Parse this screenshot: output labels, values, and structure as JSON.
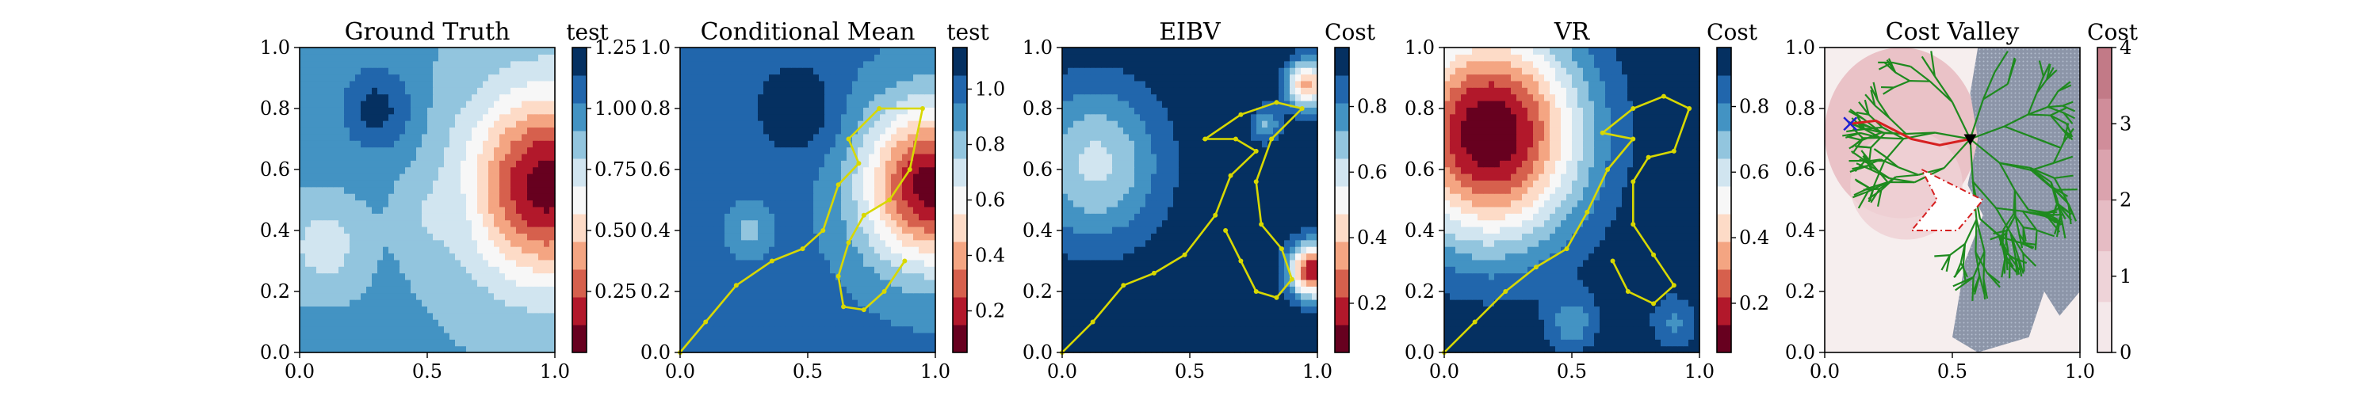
{
  "chart_data": [
    {
      "type": "heatmap",
      "title": "Ground Truth",
      "colorbar_label": "test",
      "colorbar_ticks": [
        "0.25",
        "0.50",
        "0.75",
        "1.00",
        "1.25"
      ],
      "colorbar_range": [
        0.0,
        1.25
      ],
      "colormap": [
        "#67001f",
        "#b2182b",
        "#d6604d",
        "#f4a582",
        "#fddbc7",
        "#f7f7f7",
        "#d1e5f0",
        "#92c5de",
        "#4393c3",
        "#2166ac",
        "#053061"
      ],
      "xlim": [
        0,
        1
      ],
      "ylim": [
        0,
        1
      ],
      "xticks": [
        "0.0",
        "0.5",
        "1.0"
      ],
      "yticks": [
        "0.0",
        "0.2",
        "0.4",
        "0.6",
        "0.8",
        "1.0"
      ],
      "blobs": [
        {
          "x": 0.97,
          "y": 0.55,
          "r": 0.3,
          "v": 0.05
        },
        {
          "x": 0.1,
          "y": 0.35,
          "r": 0.12,
          "v": 0.7
        },
        {
          "x": 0.3,
          "y": 0.8,
          "r": 0.14,
          "v": 1.18
        },
        {
          "x": 0.55,
          "y": 0.45,
          "r": 0.1,
          "v": 0.75
        }
      ],
      "base": 0.92
    },
    {
      "type": "heatmap",
      "title": "Conditional Mean",
      "colorbar_label": "test",
      "colorbar_ticks": [
        "0.2",
        "0.4",
        "0.6",
        "0.8",
        "1.0"
      ],
      "colorbar_range": [
        0.05,
        1.15
      ],
      "colormap": [
        "#67001f",
        "#b2182b",
        "#d6604d",
        "#f4a582",
        "#fddbc7",
        "#f7f7f7",
        "#d1e5f0",
        "#92c5de",
        "#4393c3",
        "#2166ac",
        "#053061"
      ],
      "xlim": [
        0,
        1
      ],
      "ylim": [
        0,
        1
      ],
      "xticks": [
        "0.0",
        "0.5",
        "1.0"
      ],
      "yticks": [
        "0.0",
        "0.2",
        "0.4",
        "0.6",
        "0.8",
        "1.0"
      ],
      "blobs": [
        {
          "x": 0.98,
          "y": 0.55,
          "r": 0.26,
          "v": 0.1
        },
        {
          "x": 0.45,
          "y": 0.8,
          "r": 0.15,
          "v": 1.15
        },
        {
          "x": 0.27,
          "y": 0.4,
          "r": 0.08,
          "v": 0.82
        }
      ],
      "base": 0.98,
      "path": [
        [
          0.0,
          0.0
        ],
        [
          0.1,
          0.1
        ],
        [
          0.22,
          0.22
        ],
        [
          0.36,
          0.3
        ],
        [
          0.48,
          0.34
        ],
        [
          0.56,
          0.4
        ],
        [
          0.62,
          0.55
        ],
        [
          0.7,
          0.62
        ],
        [
          0.66,
          0.7
        ],
        [
          0.78,
          0.8
        ],
        [
          0.95,
          0.8
        ],
        [
          0.9,
          0.6
        ],
        [
          0.82,
          0.5
        ],
        [
          0.72,
          0.45
        ],
        [
          0.66,
          0.36
        ],
        [
          0.62,
          0.25
        ],
        [
          0.64,
          0.15
        ],
        [
          0.72,
          0.14
        ],
        [
          0.8,
          0.2
        ],
        [
          0.88,
          0.3
        ]
      ]
    },
    {
      "type": "heatmap",
      "title": "EIBV",
      "colorbar_label": "Cost",
      "colorbar_ticks": [
        "0.2",
        "0.4",
        "0.6",
        "0.8"
      ],
      "colorbar_range": [
        0.05,
        0.98
      ],
      "colormap": [
        "#67001f",
        "#b2182b",
        "#d6604d",
        "#f4a582",
        "#fddbc7",
        "#f7f7f7",
        "#d1e5f0",
        "#92c5de",
        "#4393c3",
        "#2166ac",
        "#053061"
      ],
      "xlim": [
        0,
        1
      ],
      "ylim": [
        0,
        1
      ],
      "xticks": [
        "0.0",
        "0.5",
        "1.0"
      ],
      "yticks": [
        "0.0",
        "0.2",
        "0.4",
        "0.6",
        "0.8",
        "1.0"
      ],
      "blobs": [
        {
          "x": 0.13,
          "y": 0.62,
          "r": 0.26,
          "v": 0.62
        },
        {
          "x": 0.98,
          "y": 0.27,
          "r": 0.09,
          "v": 0.15
        },
        {
          "x": 0.96,
          "y": 0.88,
          "r": 0.08,
          "v": 0.35
        },
        {
          "x": 0.8,
          "y": 0.75,
          "r": 0.06,
          "v": 0.72
        }
      ],
      "base": 0.97,
      "path": [
        [
          0.0,
          0.0
        ],
        [
          0.12,
          0.1
        ],
        [
          0.24,
          0.22
        ],
        [
          0.36,
          0.26
        ],
        [
          0.48,
          0.32
        ],
        [
          0.6,
          0.45
        ],
        [
          0.66,
          0.58
        ],
        [
          0.76,
          0.66
        ],
        [
          0.68,
          0.7
        ],
        [
          0.56,
          0.7
        ],
        [
          0.7,
          0.78
        ],
        [
          0.84,
          0.82
        ],
        [
          0.94,
          0.8
        ],
        [
          0.82,
          0.7
        ],
        [
          0.76,
          0.56
        ],
        [
          0.78,
          0.42
        ],
        [
          0.86,
          0.34
        ],
        [
          0.9,
          0.24
        ],
        [
          0.84,
          0.18
        ],
        [
          0.76,
          0.2
        ],
        [
          0.7,
          0.3
        ],
        [
          0.64,
          0.4
        ]
      ]
    },
    {
      "type": "heatmap",
      "title": "VR",
      "colorbar_label": "Cost",
      "colorbar_ticks": [
        "0.2",
        "0.4",
        "0.6",
        "0.8"
      ],
      "colorbar_range": [
        0.05,
        0.98
      ],
      "colormap": [
        "#67001f",
        "#b2182b",
        "#d6604d",
        "#f4a582",
        "#fddbc7",
        "#f7f7f7",
        "#d1e5f0",
        "#92c5de",
        "#4393c3",
        "#2166ac",
        "#053061"
      ],
      "xlim": [
        0,
        1
      ],
      "ylim": [
        0,
        1
      ],
      "xticks": [
        "0.0",
        "0.5",
        "1.0"
      ],
      "yticks": [
        "0.0",
        "0.2",
        "0.4",
        "0.6",
        "0.8",
        "1.0"
      ],
      "blobs": [
        {
          "x": 0.18,
          "y": 0.72,
          "r": 0.36,
          "v": 0.05
        },
        {
          "x": 0.5,
          "y": 0.1,
          "r": 0.1,
          "v": 0.75
        },
        {
          "x": 0.9,
          "y": 0.1,
          "r": 0.1,
          "v": 0.8
        }
      ],
      "base": 0.98,
      "path": [
        [
          0.0,
          0.0
        ],
        [
          0.12,
          0.1
        ],
        [
          0.24,
          0.2
        ],
        [
          0.36,
          0.28
        ],
        [
          0.48,
          0.34
        ],
        [
          0.56,
          0.46
        ],
        [
          0.64,
          0.6
        ],
        [
          0.74,
          0.7
        ],
        [
          0.62,
          0.72
        ],
        [
          0.74,
          0.8
        ],
        [
          0.86,
          0.84
        ],
        [
          0.96,
          0.8
        ],
        [
          0.9,
          0.66
        ],
        [
          0.8,
          0.64
        ],
        [
          0.74,
          0.56
        ],
        [
          0.74,
          0.42
        ],
        [
          0.82,
          0.32
        ],
        [
          0.9,
          0.22
        ],
        [
          0.82,
          0.16
        ],
        [
          0.72,
          0.2
        ],
        [
          0.66,
          0.3
        ]
      ]
    },
    {
      "type": "heatmap",
      "title": "Cost Valley",
      "colorbar_label": "Cost",
      "colorbar_ticks": [
        "0",
        "1",
        "2",
        "3",
        "4"
      ],
      "colorbar_range": [
        0,
        4
      ],
      "colormap": [
        "#f4e8ea",
        "#eed3d8",
        "#e6bcc4",
        "#dba3ae",
        "#d08d9a",
        "#c27a87"
      ],
      "xlim": [
        0,
        1
      ],
      "ylim": [
        0,
        1
      ],
      "xticks": [
        "0.0",
        "0.5",
        "1.0"
      ],
      "yticks": [
        "0.0",
        "0.2",
        "0.4",
        "0.6",
        "0.8",
        "1.0"
      ],
      "start_marker": [
        0.57,
        0.7
      ],
      "goal_marker": [
        0.1,
        0.75
      ],
      "red_path": [
        [
          0.57,
          0.7
        ],
        [
          0.45,
          0.68
        ],
        [
          0.34,
          0.7
        ],
        [
          0.2,
          0.76
        ],
        [
          0.1,
          0.75
        ]
      ],
      "dashed_region": [
        [
          0.38,
          0.6
        ],
        [
          0.62,
          0.5
        ],
        [
          0.52,
          0.4
        ],
        [
          0.34,
          0.4
        ],
        [
          0.44,
          0.5
        ]
      ]
    }
  ]
}
